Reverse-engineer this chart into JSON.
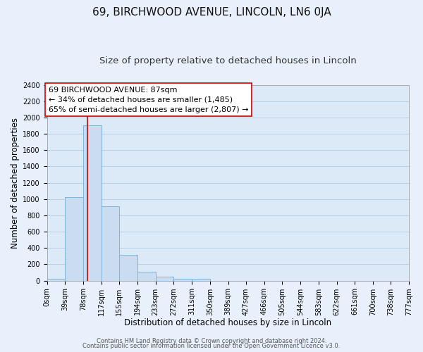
{
  "title": "69, BIRCHWOOD AVENUE, LINCOLN, LN6 0JA",
  "subtitle": "Size of property relative to detached houses in Lincoln",
  "xlabel": "Distribution of detached houses by size in Lincoln",
  "ylabel": "Number of detached properties",
  "bin_edges": [
    0,
    39,
    78,
    117,
    155,
    194,
    233,
    272,
    311,
    350,
    389,
    427,
    466,
    505,
    544,
    583,
    622,
    661,
    700,
    738,
    777
  ],
  "bin_counts": [
    20,
    1020,
    1900,
    910,
    320,
    110,
    50,
    20,
    20,
    0,
    0,
    0,
    0,
    0,
    0,
    0,
    0,
    0,
    0,
    0
  ],
  "bar_color": "#c9dcf0",
  "bar_edge_color": "#7fb3d9",
  "vline_x": 87,
  "vline_color": "#cc0000",
  "ylim": [
    0,
    2400
  ],
  "yticks": [
    0,
    200,
    400,
    600,
    800,
    1000,
    1200,
    1400,
    1600,
    1800,
    2000,
    2200,
    2400
  ],
  "plot_bg_color": "#dce9f7",
  "fig_bg_color": "#e8f1fb",
  "grid_color": "#b8cfe8",
  "annotation_text": "69 BIRCHWOOD AVENUE: 87sqm\n← 34% of detached houses are smaller (1,485)\n65% of semi-detached houses are larger (2,807) →",
  "annotation_box_facecolor": "#ffffff",
  "annotation_box_edgecolor": "#cc0000",
  "footer_line1": "Contains HM Land Registry data © Crown copyright and database right 2024.",
  "footer_line2": "Contains public sector information licensed under the Open Government Licence v3.0.",
  "title_fontsize": 11,
  "subtitle_fontsize": 9.5,
  "xlabel_fontsize": 8.5,
  "ylabel_fontsize": 8.5,
  "tick_fontsize": 7,
  "annotation_fontsize": 8,
  "footer_fontsize": 6
}
